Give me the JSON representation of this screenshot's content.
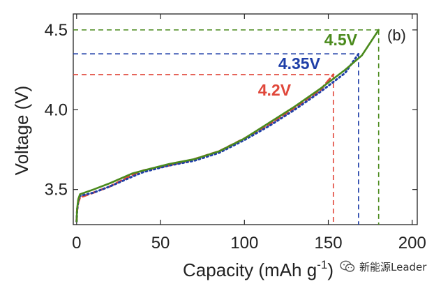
{
  "chart_data": {
    "type": "line",
    "panel_label": "(b)",
    "xlabel": "Capacity (mAh g",
    "xlabel_sup": "-1",
    "xlabel_close": ")",
    "ylabel": "Voltage (V)",
    "xlim": [
      -2,
      203
    ],
    "ylim": [
      3.28,
      4.6
    ],
    "xticks": [
      0,
      50,
      100,
      150,
      200
    ],
    "xtick_labels": [
      "0",
      "50",
      "100",
      "150",
      "200"
    ],
    "yticks": [
      3.5,
      4.0,
      4.5
    ],
    "ytick_labels": [
      "3.5",
      "4.0",
      "4.5"
    ],
    "series": [
      {
        "cutoff": "4.5V",
        "color": "#4a8a1c",
        "style": "solid",
        "end_capacity": 180,
        "points": [
          [
            0,
            3.3
          ],
          [
            0.3,
            3.38
          ],
          [
            1,
            3.44
          ],
          [
            2,
            3.47
          ],
          [
            10,
            3.5
          ],
          [
            20,
            3.54
          ],
          [
            33,
            3.6
          ],
          [
            40,
            3.62
          ],
          [
            55,
            3.66
          ],
          [
            70,
            3.69
          ],
          [
            85,
            3.74
          ],
          [
            100,
            3.82
          ],
          [
            115,
            3.92
          ],
          [
            130,
            4.02
          ],
          [
            145,
            4.13
          ],
          [
            160,
            4.25
          ],
          [
            170,
            4.34
          ],
          [
            180,
            4.5
          ]
        ]
      },
      {
        "cutoff": "4.35V",
        "color": "#1f3fa8",
        "style": "dotted",
        "end_capacity": 168,
        "points": [
          [
            0,
            3.3
          ],
          [
            0.3,
            3.37
          ],
          [
            1,
            3.43
          ],
          [
            2,
            3.46
          ],
          [
            10,
            3.48
          ],
          [
            20,
            3.52
          ],
          [
            33,
            3.58
          ],
          [
            40,
            3.61
          ],
          [
            55,
            3.65
          ],
          [
            70,
            3.68
          ],
          [
            85,
            3.73
          ],
          [
            100,
            3.81
          ],
          [
            115,
            3.9
          ],
          [
            130,
            4.0
          ],
          [
            145,
            4.11
          ],
          [
            160,
            4.23
          ],
          [
            168,
            4.35
          ]
        ]
      },
      {
        "cutoff": "4.2V",
        "color": "#e0473a",
        "style": "dashed",
        "end_capacity": 153,
        "points": [
          [
            0,
            3.3
          ],
          [
            0.3,
            3.37
          ],
          [
            1,
            3.42
          ],
          [
            2,
            3.45
          ],
          [
            10,
            3.48
          ],
          [
            20,
            3.52
          ],
          [
            33,
            3.59
          ],
          [
            40,
            3.62
          ],
          [
            55,
            3.65
          ],
          [
            70,
            3.69
          ],
          [
            85,
            3.74
          ],
          [
            100,
            3.82
          ],
          [
            115,
            3.91
          ],
          [
            130,
            4.01
          ],
          [
            145,
            4.12
          ],
          [
            153,
            4.22
          ]
        ]
      }
    ]
  },
  "watermark": {
    "text": "新能源Leader",
    "icon": "wechat-icon"
  }
}
